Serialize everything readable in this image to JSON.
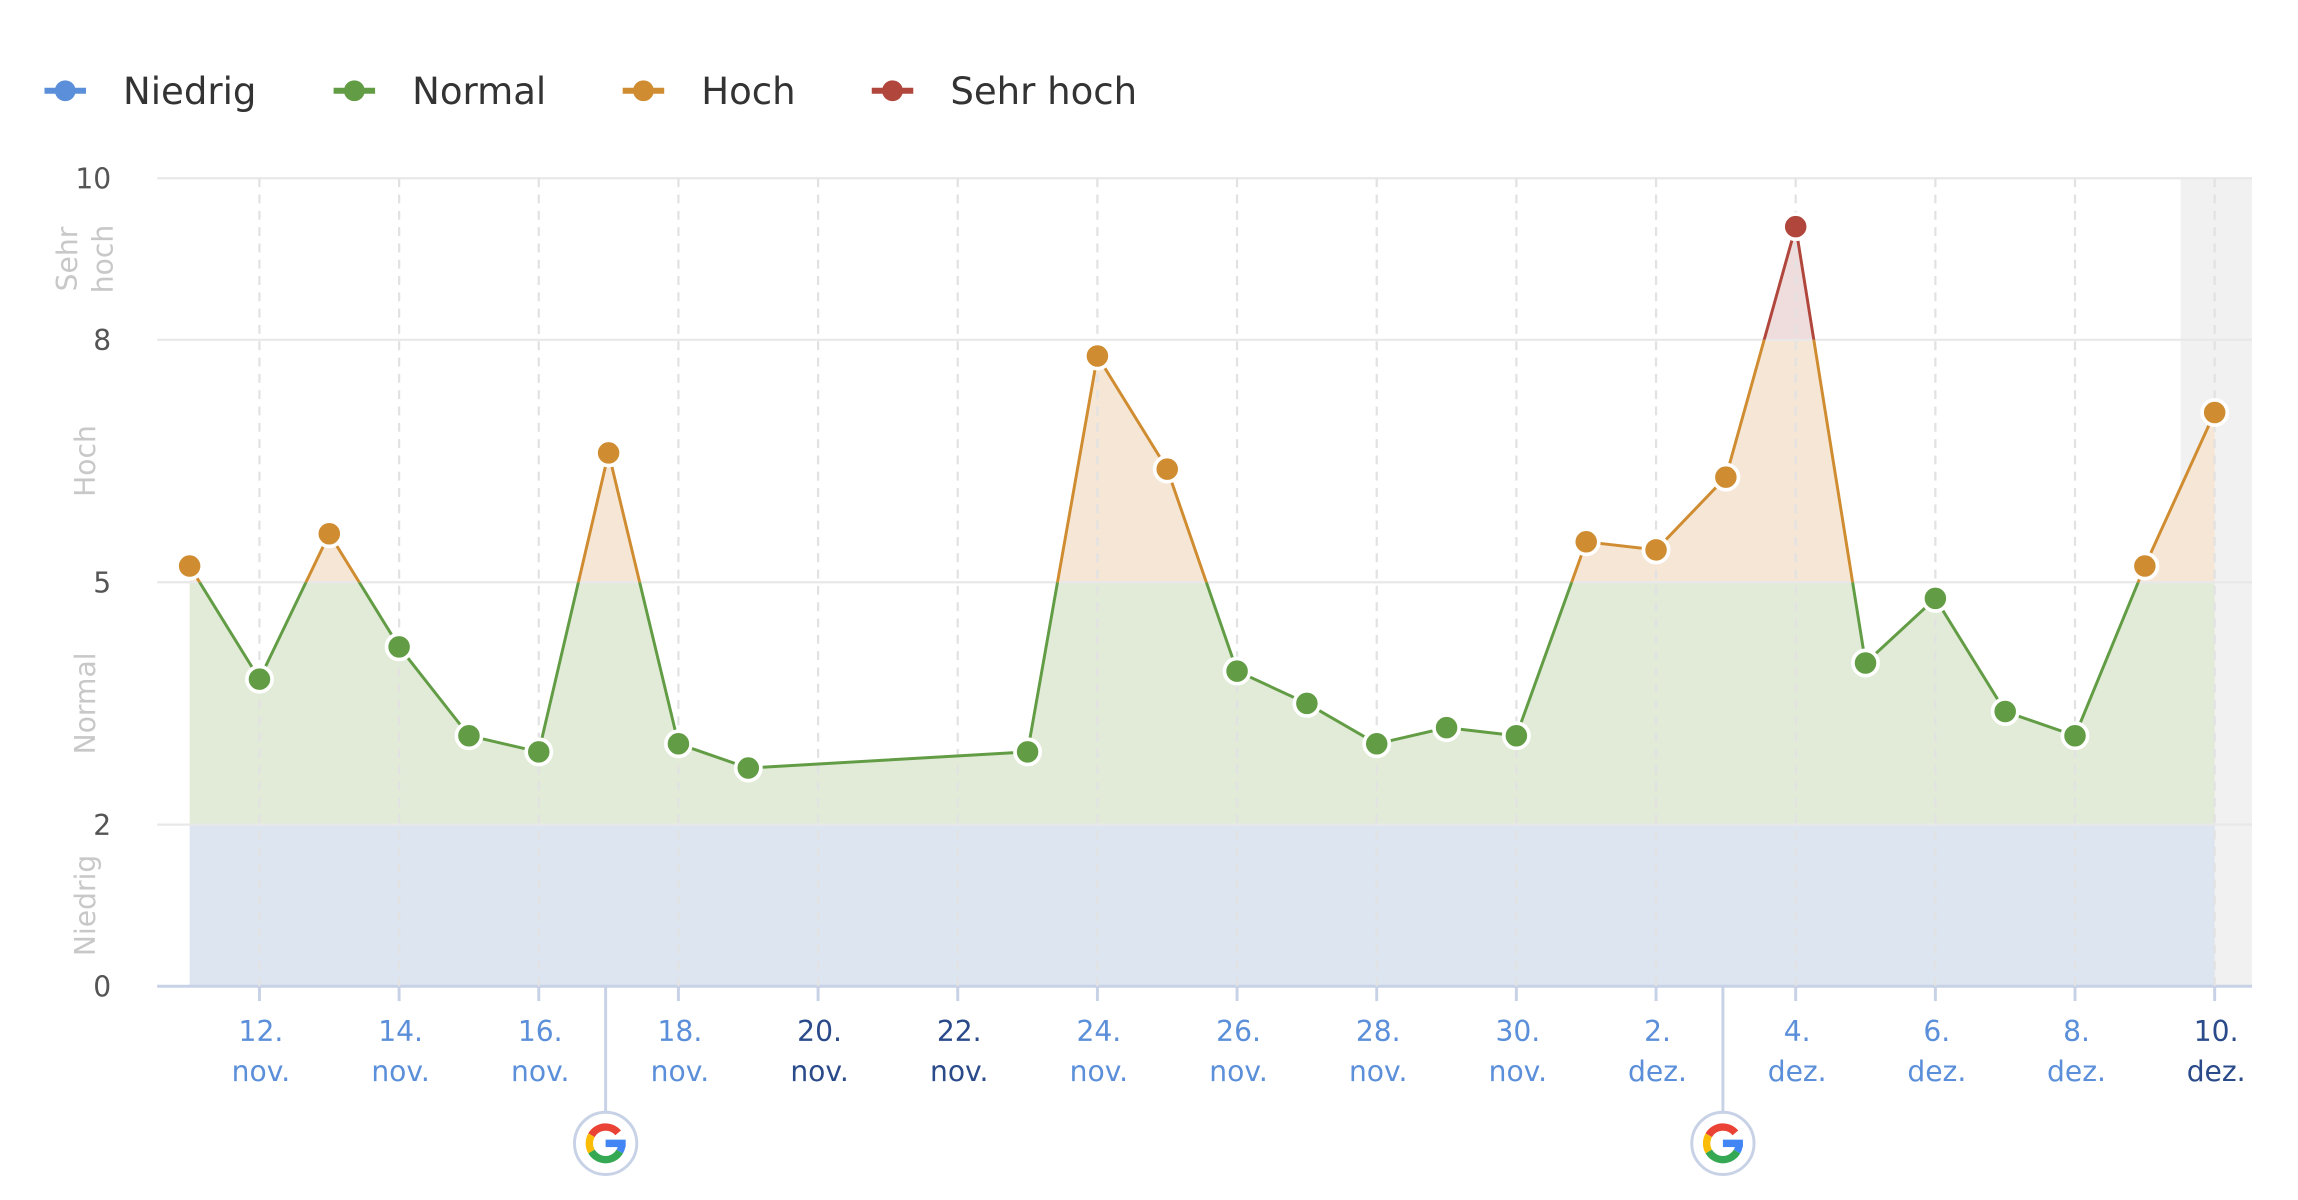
{
  "chart_data": {
    "type": "line",
    "legend": {
      "position": "top-left",
      "items": [
        {
          "name": "Niedrig",
          "color": "#5b8fd9"
        },
        {
          "name": "Normal",
          "color": "#629c44"
        },
        {
          "name": "Hoch",
          "color": "#d08c30"
        },
        {
          "name": "Sehr hoch",
          "color": "#b0463c"
        }
      ]
    },
    "ylim": [
      0,
      10
    ],
    "yticks": [
      "0",
      "2",
      "5",
      "8",
      "10"
    ],
    "bands": [
      {
        "label": "Niedrig",
        "from": 0,
        "to": 2,
        "fill": "#dce5f0",
        "line": "#5b8fd9"
      },
      {
        "label": "Normal",
        "from": 2,
        "to": 5,
        "fill": "#e1ebd8",
        "line": "#629c44"
      },
      {
        "label": "Hoch",
        "from": 5,
        "to": 8,
        "fill": "#f5e6d6",
        "line": "#d08c30"
      },
      {
        "label": "Sehr hoch",
        "from": 8,
        "to": 10,
        "fill": "#efdcdc",
        "line": "#b0463c"
      }
    ],
    "band_axis_labels": [
      [
        "Niedrig"
      ],
      [
        "Normal"
      ],
      [
        "Hoch"
      ],
      [
        "Sehr",
        "hoch"
      ]
    ],
    "x": [
      "11. nov.",
      "12. nov.",
      "13. nov.",
      "14. nov.",
      "15. nov.",
      "16. nov.",
      "17. nov.",
      "18. nov.",
      "19. nov.",
      "20. nov.",
      "21. nov.",
      "22. nov.",
      "23. nov.",
      "24. nov.",
      "25. nov.",
      "26. nov.",
      "27. nov.",
      "28. nov.",
      "29. nov.",
      "30. nov.",
      "1. dez.",
      "2. dez.",
      "3. dez.",
      "4. dez.",
      "5. dez.",
      "6. dez.",
      "7. dez.",
      "8. dez.",
      "9. dez.",
      "10. dez."
    ],
    "values": [
      5.2,
      3.8,
      5.6,
      4.2,
      3.1,
      2.9,
      6.6,
      3.0,
      2.7,
      null,
      null,
      null,
      2.9,
      7.8,
      6.4,
      3.9,
      3.5,
      3.0,
      3.2,
      3.1,
      5.5,
      5.4,
      6.3,
      9.4,
      4.0,
      4.8,
      3.4,
      3.1,
      5.2,
      7.1
    ],
    "xticks": [
      {
        "day": "12.",
        "month": "nov.",
        "dark": false
      },
      {
        "day": "14.",
        "month": "nov.",
        "dark": false
      },
      {
        "day": "16.",
        "month": "nov.",
        "dark": false
      },
      {
        "day": "18.",
        "month": "nov.",
        "dark": false
      },
      {
        "day": "20.",
        "month": "nov.",
        "dark": true
      },
      {
        "day": "22.",
        "month": "nov.",
        "dark": true
      },
      {
        "day": "24.",
        "month": "nov.",
        "dark": false
      },
      {
        "day": "26.",
        "month": "nov.",
        "dark": false
      },
      {
        "day": "28.",
        "month": "nov.",
        "dark": false
      },
      {
        "day": "30.",
        "month": "nov.",
        "dark": false
      },
      {
        "day": "2.",
        "month": "dez.",
        "dark": false
      },
      {
        "day": "4.",
        "month": "dez.",
        "dark": false
      },
      {
        "day": "6.",
        "month": "dez.",
        "dark": false
      },
      {
        "day": "8.",
        "month": "dez.",
        "dark": false
      },
      {
        "day": "10.",
        "month": "dez.",
        "dark": true
      }
    ],
    "xtick_indices": [
      1,
      3,
      5,
      7,
      9,
      11,
      13,
      15,
      17,
      19,
      21,
      23,
      25,
      27,
      29
    ],
    "google_update_markers": [
      {
        "date": "17. nov.",
        "icon": "google-icon"
      },
      {
        "date": "3. dez.",
        "icon": "google-icon"
      }
    ],
    "highlighted_date": "10. dez.",
    "grid": true
  }
}
